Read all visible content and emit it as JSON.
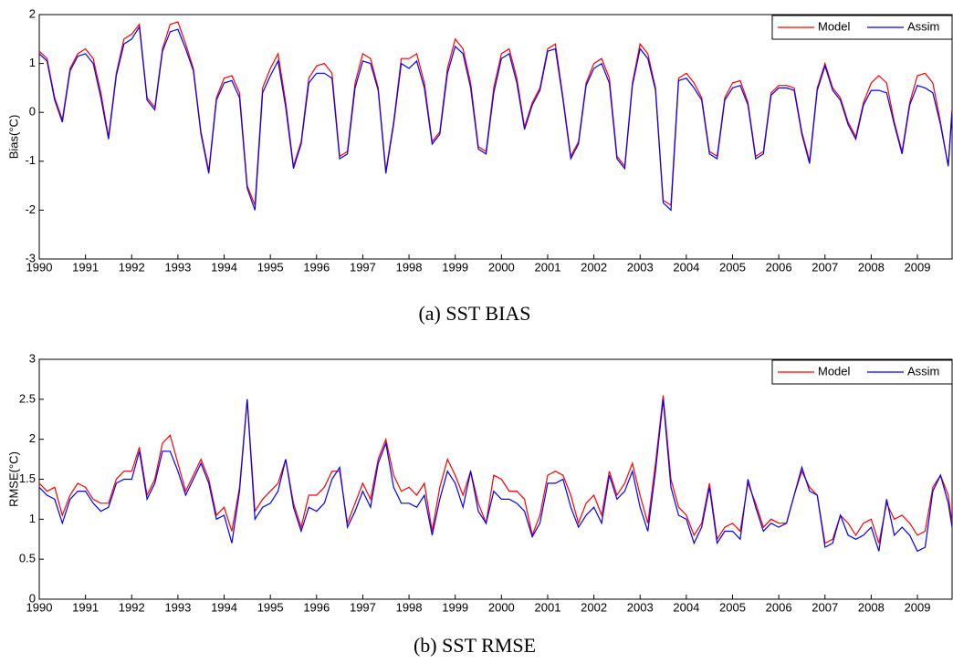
{
  "chart_data": [
    {
      "type": "line",
      "caption": "(a) SST BIAS",
      "ylabel": "Bias(°C)",
      "x": [
        1990,
        1990.167,
        1990.333,
        1990.5,
        1990.667,
        1990.833,
        1991,
        1991.167,
        1991.333,
        1991.5,
        1991.667,
        1991.833,
        1992,
        1992.167,
        1992.333,
        1992.5,
        1992.667,
        1992.833,
        1993,
        1993.167,
        1993.333,
        1993.5,
        1993.667,
        1993.833,
        1994,
        1994.167,
        1994.333,
        1994.5,
        1994.667,
        1994.833,
        1995,
        1995.167,
        1995.333,
        1995.5,
        1995.667,
        1995.833,
        1996,
        1996.167,
        1996.333,
        1996.5,
        1996.667,
        1996.833,
        1997,
        1997.167,
        1997.333,
        1997.5,
        1997.667,
        1997.833,
        1998,
        1998.167,
        1998.333,
        1998.5,
        1998.667,
        1998.833,
        1999,
        1999.167,
        1999.333,
        1999.5,
        1999.667,
        1999.833,
        2000,
        2000.167,
        2000.333,
        2000.5,
        2000.667,
        2000.833,
        2001,
        2001.167,
        2001.333,
        2001.5,
        2001.667,
        2001.833,
        2002,
        2002.167,
        2002.333,
        2002.5,
        2002.667,
        2002.833,
        2003,
        2003.167,
        2003.333,
        2003.5,
        2003.667,
        2003.833,
        2004,
        2004.167,
        2004.333,
        2004.5,
        2004.667,
        2004.833,
        2005,
        2005.167,
        2005.333,
        2005.5,
        2005.667,
        2005.833,
        2006,
        2006.167,
        2006.333,
        2006.5,
        2006.667,
        2006.833,
        2007,
        2007.167,
        2007.333,
        2007.5,
        2007.667,
        2007.833,
        2008,
        2008.167,
        2008.333,
        2008.5,
        2008.667,
        2008.833,
        2009,
        2009.167,
        2009.333,
        2009.5,
        2009.667,
        2009.75
      ],
      "series": [
        {
          "name": "Model",
          "color": "#ff0000",
          "values": [
            1.25,
            1.1,
            0.3,
            -0.15,
            0.9,
            1.2,
            1.3,
            1.1,
            0.4,
            -0.5,
            0.8,
            1.5,
            1.6,
            1.8,
            0.3,
            0.1,
            1.3,
            1.8,
            1.85,
            1.4,
            0.9,
            -0.4,
            -1.2,
            0.3,
            0.7,
            0.75,
            0.4,
            -1.5,
            -1.9,
            0.5,
            0.9,
            1.2,
            0.2,
            -1.1,
            -0.6,
            0.7,
            0.95,
            1.0,
            0.8,
            -0.9,
            -0.8,
            0.6,
            1.2,
            1.1,
            0.5,
            -1.2,
            -0.2,
            1.1,
            1.1,
            1.2,
            0.6,
            -0.6,
            -0.4,
            0.9,
            1.5,
            1.3,
            0.6,
            -0.7,
            -0.8,
            0.5,
            1.2,
            1.3,
            0.7,
            -0.3,
            0.2,
            0.5,
            1.3,
            1.4,
            0.3,
            -0.9,
            -0.6,
            0.6,
            1.0,
            1.1,
            0.7,
            -0.9,
            -1.1,
            0.6,
            1.4,
            1.2,
            0.5,
            -1.8,
            -1.9,
            0.7,
            0.8,
            0.6,
            0.3,
            -0.8,
            -0.9,
            0.3,
            0.6,
            0.65,
            0.2,
            -0.9,
            -0.8,
            0.4,
            0.55,
            0.55,
            0.5,
            -0.4,
            -1.0,
            0.5,
            1.0,
            0.5,
            0.3,
            -0.2,
            -0.5,
            0.2,
            0.6,
            0.75,
            0.6,
            -0.2,
            -0.8,
            0.2,
            0.75,
            0.8,
            0.6,
            -0.2,
            -1.1,
            0.1
          ]
        },
        {
          "name": "Assim",
          "color": "#0000ff",
          "values": [
            1.2,
            1.05,
            0.25,
            -0.2,
            0.85,
            1.15,
            1.2,
            1.0,
            0.3,
            -0.55,
            0.75,
            1.4,
            1.5,
            1.75,
            0.25,
            0.05,
            1.25,
            1.65,
            1.7,
            1.3,
            0.85,
            -0.45,
            -1.25,
            0.25,
            0.6,
            0.65,
            0.3,
            -1.55,
            -2.0,
            0.4,
            0.75,
            1.05,
            0.1,
            -1.15,
            -0.65,
            0.6,
            0.8,
            0.8,
            0.7,
            -0.95,
            -0.85,
            0.5,
            1.05,
            1.0,
            0.45,
            -1.25,
            -0.25,
            1.0,
            0.9,
            1.05,
            0.5,
            -0.65,
            -0.45,
            0.8,
            1.35,
            1.2,
            0.5,
            -0.75,
            -0.85,
            0.4,
            1.1,
            1.2,
            0.6,
            -0.35,
            0.15,
            0.45,
            1.25,
            1.3,
            0.25,
            -0.95,
            -0.65,
            0.55,
            0.9,
            1.0,
            0.6,
            -0.95,
            -1.15,
            0.55,
            1.3,
            1.1,
            0.45,
            -1.85,
            -2.0,
            0.65,
            0.7,
            0.5,
            0.25,
            -0.85,
            -0.95,
            0.25,
            0.5,
            0.55,
            0.15,
            -0.95,
            -0.85,
            0.35,
            0.5,
            0.5,
            0.45,
            -0.45,
            -1.05,
            0.45,
            0.95,
            0.45,
            0.25,
            -0.25,
            -0.55,
            0.15,
            0.45,
            0.45,
            0.4,
            -0.25,
            -0.85,
            0.15,
            0.55,
            0.5,
            0.4,
            -0.25,
            -1.1,
            0.0
          ]
        }
      ],
      "xlim": [
        1990,
        2009.75
      ],
      "xticks": [
        1990,
        1991,
        1992,
        1993,
        1994,
        1995,
        1996,
        1997,
        1998,
        1999,
        2000,
        2001,
        2002,
        2003,
        2004,
        2005,
        2006,
        2007,
        2008,
        2009
      ],
      "ylim": [
        -3,
        2
      ],
      "yticks": [
        -3,
        -2,
        -1,
        0,
        1,
        2
      ],
      "grid": false,
      "legend": "upper right"
    },
    {
      "type": "line",
      "caption": "(b) SST RMSE",
      "ylabel": "RMSE(°C)",
      "x": [
        1990,
        1990.167,
        1990.333,
        1990.5,
        1990.667,
        1990.833,
        1991,
        1991.167,
        1991.333,
        1991.5,
        1991.667,
        1991.833,
        1992,
        1992.167,
        1992.333,
        1992.5,
        1992.667,
        1992.833,
        1993,
        1993.167,
        1993.333,
        1993.5,
        1993.667,
        1993.833,
        1994,
        1994.167,
        1994.333,
        1994.5,
        1994.667,
        1994.833,
        1995,
        1995.167,
        1995.333,
        1995.5,
        1995.667,
        1995.833,
        1996,
        1996.167,
        1996.333,
        1996.5,
        1996.667,
        1996.833,
        1997,
        1997.167,
        1997.333,
        1997.5,
        1997.667,
        1997.833,
        1998,
        1998.167,
        1998.333,
        1998.5,
        1998.667,
        1998.833,
        1999,
        1999.167,
        1999.333,
        1999.5,
        1999.667,
        1999.833,
        2000,
        2000.167,
        2000.333,
        2000.5,
        2000.667,
        2000.833,
        2001,
        2001.167,
        2001.333,
        2001.5,
        2001.667,
        2001.833,
        2002,
        2002.167,
        2002.333,
        2002.5,
        2002.667,
        2002.833,
        2003,
        2003.167,
        2003.333,
        2003.5,
        2003.667,
        2003.833,
        2004,
        2004.167,
        2004.333,
        2004.5,
        2004.667,
        2004.833,
        2005,
        2005.167,
        2005.333,
        2005.5,
        2005.667,
        2005.833,
        2006,
        2006.167,
        2006.333,
        2006.5,
        2006.667,
        2006.833,
        2007,
        2007.167,
        2007.333,
        2007.5,
        2007.667,
        2007.833,
        2008,
        2008.167,
        2008.333,
        2008.5,
        2008.667,
        2008.833,
        2009,
        2009.167,
        2009.333,
        2009.5,
        2009.667,
        2009.75
      ],
      "series": [
        {
          "name": "Model",
          "color": "#ff0000",
          "values": [
            1.45,
            1.35,
            1.4,
            1.05,
            1.3,
            1.45,
            1.4,
            1.25,
            1.2,
            1.2,
            1.5,
            1.6,
            1.6,
            1.9,
            1.3,
            1.5,
            1.95,
            2.05,
            1.7,
            1.35,
            1.55,
            1.75,
            1.5,
            1.05,
            1.15,
            0.85,
            1.4,
            2.5,
            1.1,
            1.25,
            1.35,
            1.45,
            1.75,
            1.2,
            0.9,
            1.3,
            1.3,
            1.4,
            1.6,
            1.6,
            0.95,
            1.2,
            1.45,
            1.25,
            1.75,
            2.0,
            1.55,
            1.35,
            1.4,
            1.3,
            1.45,
            0.85,
            1.4,
            1.75,
            1.55,
            1.3,
            1.6,
            1.2,
            0.95,
            1.55,
            1.5,
            1.35,
            1.35,
            1.25,
            0.8,
            1.05,
            1.55,
            1.6,
            1.55,
            1.3,
            0.95,
            1.2,
            1.3,
            1.05,
            1.6,
            1.3,
            1.45,
            1.7,
            1.3,
            0.95,
            1.7,
            2.55,
            1.5,
            1.15,
            1.05,
            0.8,
            0.95,
            1.45,
            0.75,
            0.9,
            0.95,
            0.85,
            1.45,
            1.2,
            0.9,
            1.0,
            0.95,
            0.95,
            1.3,
            1.6,
            1.4,
            1.3,
            0.7,
            0.75,
            1.05,
            0.95,
            0.8,
            0.95,
            1.0,
            0.7,
            1.2,
            1.0,
            1.05,
            0.95,
            0.8,
            0.85,
            1.4,
            1.55,
            1.3,
            0.95
          ]
        },
        {
          "name": "Assim",
          "color": "#0000ff",
          "values": [
            1.4,
            1.3,
            1.25,
            0.95,
            1.25,
            1.35,
            1.35,
            1.2,
            1.1,
            1.15,
            1.45,
            1.5,
            1.5,
            1.85,
            1.25,
            1.45,
            1.85,
            1.85,
            1.6,
            1.3,
            1.5,
            1.7,
            1.45,
            1.0,
            1.05,
            0.7,
            1.35,
            2.5,
            1.0,
            1.15,
            1.2,
            1.35,
            1.75,
            1.15,
            0.85,
            1.15,
            1.1,
            1.2,
            1.5,
            1.65,
            0.9,
            1.1,
            1.35,
            1.15,
            1.7,
            1.95,
            1.4,
            1.2,
            1.2,
            1.15,
            1.3,
            0.8,
            1.25,
            1.6,
            1.45,
            1.15,
            1.6,
            1.1,
            0.95,
            1.35,
            1.25,
            1.25,
            1.2,
            1.1,
            0.78,
            0.95,
            1.45,
            1.45,
            1.5,
            1.15,
            0.9,
            1.05,
            1.15,
            0.95,
            1.55,
            1.25,
            1.35,
            1.6,
            1.15,
            0.85,
            1.6,
            2.5,
            1.4,
            1.05,
            1.0,
            0.7,
            0.9,
            1.4,
            0.7,
            0.85,
            0.85,
            0.75,
            1.5,
            1.15,
            0.85,
            0.95,
            0.9,
            0.95,
            1.3,
            1.65,
            1.35,
            1.3,
            0.65,
            0.7,
            1.05,
            0.8,
            0.75,
            0.8,
            0.9,
            0.6,
            1.25,
            0.8,
            0.9,
            0.8,
            0.6,
            0.65,
            1.35,
            1.55,
            1.2,
            0.9
          ]
        }
      ],
      "xlim": [
        1990,
        2009.75
      ],
      "xticks": [
        1990,
        1991,
        1992,
        1993,
        1994,
        1995,
        1996,
        1997,
        1998,
        1999,
        2000,
        2001,
        2002,
        2003,
        2004,
        2005,
        2006,
        2007,
        2008,
        2009
      ],
      "ylim": [
        0,
        3
      ],
      "yticks": [
        0,
        0.5,
        1,
        1.5,
        2,
        2.5,
        3
      ],
      "grid": false,
      "legend": "upper right"
    }
  ]
}
